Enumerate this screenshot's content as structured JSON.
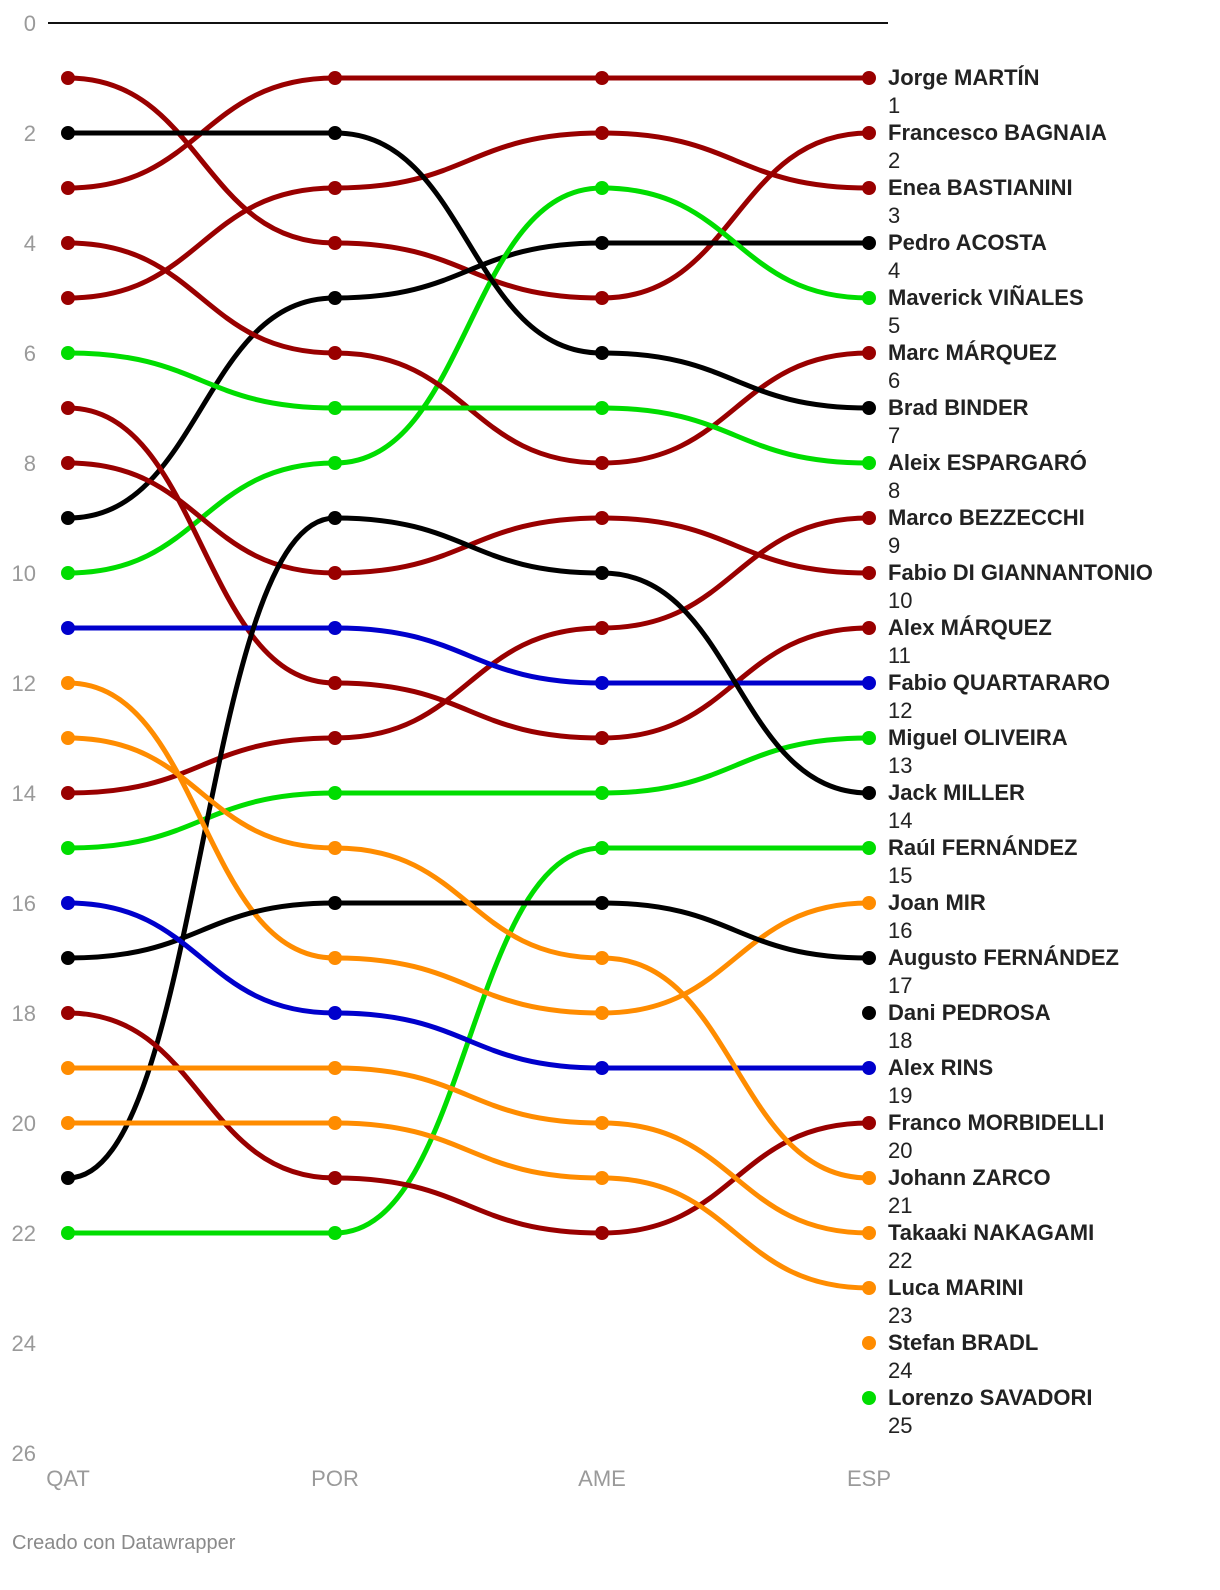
{
  "chart_data": {
    "type": "line",
    "curve": "smooth",
    "y_axis": {
      "reversed": true,
      "ylim": [
        0,
        26
      ],
      "ticks": [
        0,
        2,
        4,
        6,
        8,
        10,
        12,
        14,
        16,
        18,
        20,
        22,
        24,
        26
      ]
    },
    "categories": [
      "QAT",
      "POR",
      "AME",
      "ESP"
    ],
    "series": [
      {
        "name": "Jorge MARTÍN",
        "final_rank": 1,
        "color": "#990000",
        "values": [
          3,
          1,
          1,
          1
        ]
      },
      {
        "name": "Francesco BAGNAIA",
        "final_rank": 2,
        "color": "#990000",
        "values": [
          1,
          4,
          5,
          2
        ]
      },
      {
        "name": "Enea BASTIANINI",
        "final_rank": 3,
        "color": "#990000",
        "values": [
          5,
          3,
          2,
          3
        ]
      },
      {
        "name": "Pedro ACOSTA",
        "final_rank": 4,
        "color": "#000000",
        "values": [
          9,
          5,
          4,
          4
        ]
      },
      {
        "name": "Maverick VIÑALES",
        "final_rank": 5,
        "color": "#00dd00",
        "values": [
          10,
          8,
          3,
          5
        ]
      },
      {
        "name": "Marc MÁRQUEZ",
        "final_rank": 6,
        "color": "#990000",
        "values": [
          4,
          6,
          8,
          6
        ]
      },
      {
        "name": "Brad BINDER",
        "final_rank": 7,
        "color": "#000000",
        "values": [
          2,
          2,
          6,
          7
        ]
      },
      {
        "name": "Aleix ESPARGARÓ",
        "final_rank": 8,
        "color": "#00dd00",
        "values": [
          6,
          7,
          7,
          8
        ]
      },
      {
        "name": "Marco BEZZECCHI",
        "final_rank": 9,
        "color": "#990000",
        "values": [
          14,
          13,
          11,
          9
        ]
      },
      {
        "name": "Fabio DI GIANNANTONIO",
        "final_rank": 10,
        "color": "#990000",
        "values": [
          8,
          10,
          9,
          10
        ]
      },
      {
        "name": "Alex MÁRQUEZ",
        "final_rank": 11,
        "color": "#990000",
        "values": [
          7,
          12,
          13,
          11
        ]
      },
      {
        "name": "Fabio QUARTARARO",
        "final_rank": 12,
        "color": "#0000cc",
        "values": [
          11,
          11,
          12,
          12
        ]
      },
      {
        "name": "Miguel OLIVEIRA",
        "final_rank": 13,
        "color": "#00dd00",
        "values": [
          15,
          14,
          14,
          13
        ]
      },
      {
        "name": "Jack MILLER",
        "final_rank": 14,
        "color": "#000000",
        "values": [
          21,
          9,
          10,
          14
        ]
      },
      {
        "name": "Raúl FERNÁNDEZ",
        "final_rank": 15,
        "color": "#00dd00",
        "values": [
          22,
          22,
          15,
          15
        ]
      },
      {
        "name": "Joan MIR",
        "final_rank": 16,
        "color": "#ff8c00",
        "values": [
          12,
          17,
          18,
          16
        ]
      },
      {
        "name": "Augusto FERNÁNDEZ",
        "final_rank": 17,
        "color": "#000000",
        "values": [
          17,
          16,
          16,
          17
        ]
      },
      {
        "name": "Dani PEDROSA",
        "final_rank": 18,
        "color": "#000000",
        "values": [
          null,
          null,
          null,
          18
        ]
      },
      {
        "name": "Alex RINS",
        "final_rank": 19,
        "color": "#0000cc",
        "values": [
          16,
          18,
          19,
          19
        ]
      },
      {
        "name": "Franco MORBIDELLI",
        "final_rank": 20,
        "color": "#990000",
        "values": [
          18,
          21,
          22,
          20
        ]
      },
      {
        "name": "Johann ZARCO",
        "final_rank": 21,
        "color": "#ff8c00",
        "values": [
          13,
          15,
          17,
          21
        ]
      },
      {
        "name": "Takaaki NAKAGAMI",
        "final_rank": 22,
        "color": "#ff8c00",
        "values": [
          19,
          19,
          20,
          22
        ]
      },
      {
        "name": "Luca MARINI",
        "final_rank": 23,
        "color": "#ff8c00",
        "values": [
          20,
          20,
          21,
          23
        ]
      },
      {
        "name": "Stefan BRADL",
        "final_rank": 24,
        "color": "#ff8c00",
        "values": [
          null,
          null,
          null,
          24
        ]
      },
      {
        "name": "Lorenzo SAVADORI",
        "final_rank": 25,
        "color": "#00dd00",
        "values": [
          null,
          null,
          null,
          25
        ]
      }
    ]
  },
  "footer": {
    "credit": "Creado con Datawrapper"
  }
}
